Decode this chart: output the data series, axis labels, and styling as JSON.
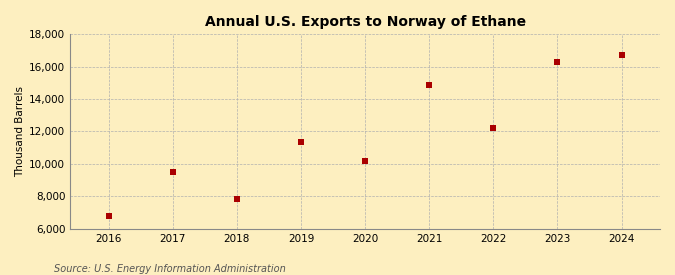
{
  "title": "Annual U.S. Exports to Norway of Ethane",
  "ylabel": "Thousand Barrels",
  "source": "Source: U.S. Energy Information Administration",
  "x": [
    2016,
    2017,
    2018,
    2019,
    2020,
    2021,
    2022,
    2023,
    2024
  ],
  "y": [
    6750,
    9500,
    7800,
    11350,
    10150,
    14850,
    12200,
    16300,
    16750
  ],
  "ylim": [
    6000,
    18000
  ],
  "yticks": [
    6000,
    8000,
    10000,
    12000,
    14000,
    16000,
    18000
  ],
  "xlim": [
    2015.4,
    2024.6
  ],
  "xticks": [
    2016,
    2017,
    2018,
    2019,
    2020,
    2021,
    2022,
    2023,
    2024
  ],
  "marker_color": "#aa0000",
  "marker": "s",
  "marker_size": 4,
  "bg_color": "#fdefc0",
  "grid_color": "#b0b0b0",
  "title_fontsize": 10,
  "label_fontsize": 7.5,
  "tick_fontsize": 7.5,
  "source_fontsize": 7
}
